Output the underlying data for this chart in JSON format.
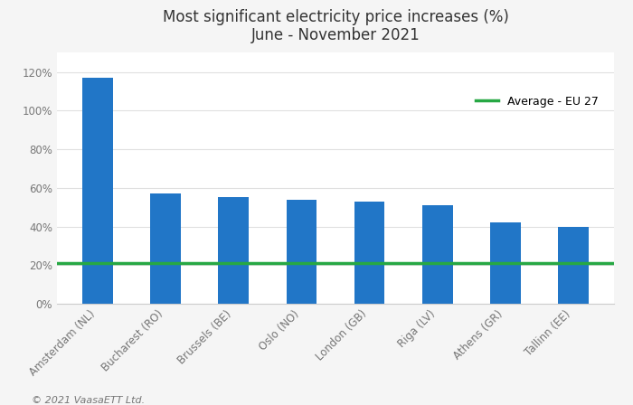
{
  "title_line1": "Most significant electricity price increases (%)",
  "title_line2": "June - November 2021",
  "categories": [
    "Amsterdam (NL)",
    "Bucharest (RO)",
    "Brussels (BE)",
    "Oslo (NO)",
    "London (GB)",
    "Riga (LV)",
    "Athens (GR)",
    "Tallinn (EE)"
  ],
  "values": [
    117,
    57,
    55,
    54,
    53,
    51,
    42,
    40
  ],
  "bar_color": "#2176c7",
  "average_value": 21,
  "average_color": "#27a844",
  "average_label": "Average - EU 27",
  "yticks": [
    0,
    20,
    40,
    60,
    80,
    100,
    120
  ],
  "ylim": [
    0,
    130
  ],
  "background_color": "#f5f5f5",
  "plot_bg_color": "#ffffff",
  "footer_text": "© 2021 VaasaETT Ltd.",
  "title_fontsize": 12,
  "tick_fontsize": 8.5,
  "footer_fontsize": 8,
  "legend_fontsize": 9
}
